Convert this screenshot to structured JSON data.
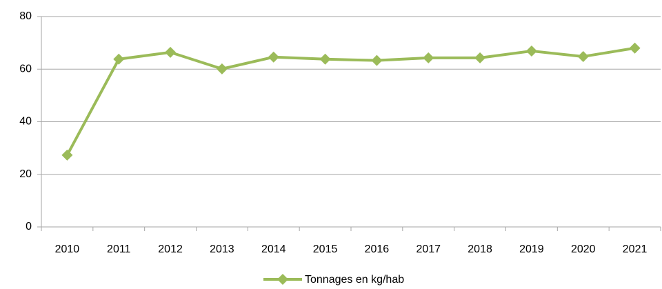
{
  "chart_data": {
    "type": "line",
    "categories": [
      "2010",
      "2011",
      "2012",
      "2013",
      "2014",
      "2015",
      "2016",
      "2017",
      "2018",
      "2019",
      "2020",
      "2021"
    ],
    "series": [
      {
        "name": "Tonnages en kg/hab",
        "color": "#9bbb59",
        "values": [
          27.3,
          63.8,
          66.4,
          60.1,
          64.6,
          63.8,
          63.3,
          64.3,
          64.3,
          66.9,
          64.8,
          68.0
        ]
      }
    ],
    "ylim": [
      0,
      80
    ],
    "yticks": [
      0,
      20,
      40,
      60,
      80
    ],
    "grid": true,
    "legend": "bottom"
  }
}
